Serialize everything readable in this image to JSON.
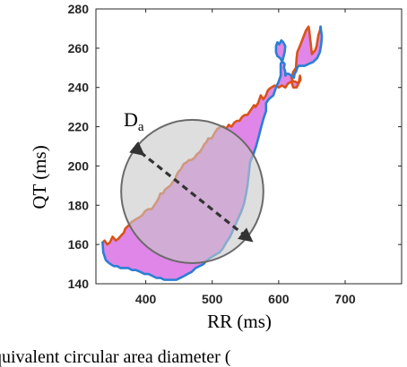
{
  "chart_data": {
    "type": "line",
    "title": "",
    "xlabel": "RR (ms)",
    "ylabel": "QT (ms)",
    "xlim": [
      325,
      785
    ],
    "ylim": [
      140,
      280
    ],
    "xticks": [
      400,
      500,
      600,
      700
    ],
    "yticks": [
      140,
      160,
      180,
      200,
      220,
      240,
      260,
      280
    ],
    "grid": false,
    "colors": {
      "fill": "#df86e8",
      "orange": "#d95319",
      "blue": "#2a7fd4",
      "circle_fill": "#c8c8c8",
      "circle_stroke": "#6a6a6a",
      "arrow": "#333333"
    },
    "series": [
      {
        "color": "#d95319",
        "x": [
          663,
          662,
          660,
          659,
          658,
          657,
          655,
          650,
          648,
          646,
          645,
          641,
          633,
          628,
          627,
          626,
          622,
          619,
          622,
          625,
          630,
          632,
          633,
          627,
          622,
          619,
          614,
          610,
          605,
          600,
          594,
          589,
          585,
          583,
          581,
          577,
          573,
          569,
          565,
          563,
          561,
          559,
          557,
          553,
          549,
          545,
          541,
          537,
          533,
          529,
          525,
          521,
          517,
          513,
          508,
          504,
          499,
          494,
          491,
          488,
          485,
          481,
          477,
          473,
          468,
          465,
          462,
          457,
          454,
          452,
          449,
          446,
          444,
          441,
          437,
          433,
          429,
          426,
          422,
          420,
          417,
          413,
          409,
          404,
          399,
          395,
          391,
          386,
          381,
          377,
          375,
          372,
          369,
          367,
          364,
          359,
          355,
          350,
          346,
          342,
          338,
          335
        ],
        "y": [
          271,
          269,
          267,
          265,
          263,
          261,
          259,
          257,
          263,
          269,
          271,
          269,
          262,
          258,
          255,
          250,
          248,
          245,
          243,
          243,
          242,
          246,
          244,
          240,
          240,
          243,
          242,
          240,
          241,
          240,
          241,
          240,
          239,
          238,
          236,
          234,
          236,
          232,
          230,
          231,
          230,
          229,
          228,
          226,
          226,
          225,
          223,
          223,
          222,
          220,
          221,
          219,
          220,
          220,
          219,
          217,
          214,
          214,
          212,
          211,
          209,
          207,
          206,
          204,
          203,
          203,
          202,
          201,
          199,
          198,
          197,
          195,
          193,
          192,
          190,
          189,
          188,
          186,
          186,
          184,
          182,
          180,
          178,
          178,
          177,
          175,
          174,
          173,
          172,
          171,
          170,
          169,
          168,
          166,
          165,
          163,
          162,
          164,
          161,
          160,
          162,
          161
        ]
      },
      {
        "color": "#2a7fd4",
        "x": [
          663,
          665,
          664,
          662,
          658,
          652,
          645,
          639,
          634,
          630,
          628,
          627,
          626,
          624,
          623,
          619,
          615,
          612,
          610,
          610,
          608,
          609,
          606,
          602,
          598,
          596,
          596,
          598,
          601,
          604,
          607,
          610,
          609,
          606,
          603,
          603,
          600,
          596,
          592,
          585,
          581,
          581,
          577,
          573,
          570,
          566,
          562,
          557,
          555,
          553,
          551,
          548,
          544,
          540,
          536,
          531,
          527,
          521,
          516,
          511,
          506,
          501,
          496,
          492,
          487,
          481,
          475,
          469,
          463,
          458,
          452,
          446,
          440,
          434,
          428,
          422,
          416,
          410,
          404,
          398,
          392,
          385,
          379,
          374,
          368,
          362,
          357,
          352,
          347,
          343,
          340,
          338,
          336,
          335
        ],
        "y": [
          271,
          266,
          262,
          258,
          255,
          253,
          252,
          251,
          251,
          251,
          250,
          249,
          248,
          247,
          245,
          246,
          247,
          247,
          246,
          248,
          250,
          252,
          253,
          255,
          256,
          258,
          261,
          263,
          262,
          264,
          263,
          261,
          258,
          254,
          252,
          246,
          243,
          240,
          236,
          234,
          232,
          228,
          224,
          219,
          215,
          210,
          206,
          202,
          196,
          190,
          186,
          181,
          177,
          174,
          171,
          167,
          164,
          161,
          158,
          156,
          155,
          154,
          153,
          152,
          150,
          149,
          148,
          146,
          145,
          144,
          143,
          142,
          142,
          142,
          142,
          143,
          143,
          144,
          145,
          145,
          146,
          147,
          147,
          148,
          148,
          148,
          149,
          149,
          150,
          151,
          152,
          154,
          156,
          161
        ]
      }
    ],
    "circle": {
      "center_x": 470,
      "center_y": 187,
      "radius_x": 107,
      "radius_y": 36.5
    },
    "arrow": {
      "x": [
        392,
        555
      ],
      "y": [
        207,
        163
      ]
    },
    "annotation": {
      "main": "D",
      "sub": "a"
    },
    "caption_fragment": "quivalent circular area diameter ("
  }
}
